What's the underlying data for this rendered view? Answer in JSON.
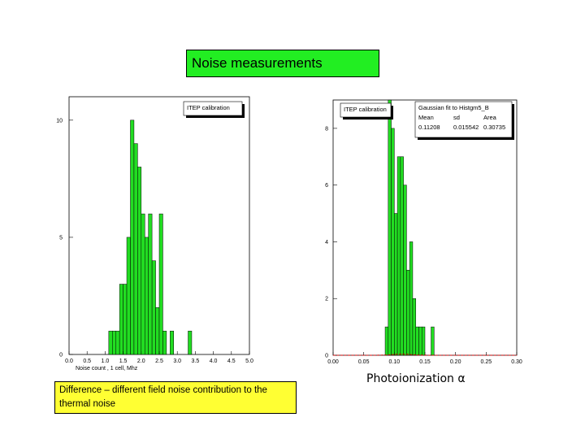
{
  "slide": {
    "title": "Noise measurements",
    "note": "Difference – different field noise contribution to the thermal noise",
    "photo_label": "Photoionization α"
  },
  "colors": {
    "bar_fill": "#22dd22",
    "bar_stroke": "#000000",
    "fit_line": "#cc0000",
    "title_bg": "#22ee22",
    "note_bg": "#ffff33"
  },
  "chart_data": [
    {
      "type": "bar",
      "legend": [
        "ITEP calibration"
      ],
      "xlabel": "Noise count , 1 cell, Mhz",
      "ylabel": "",
      "xlim": [
        0.0,
        5.0
      ],
      "ylim": [
        0,
        11
      ],
      "x_ticks": [
        "0.0",
        "0.5",
        "1.0",
        "1.5",
        "2.0",
        "2.5",
        "3.0",
        "3.5",
        "4.0",
        "4.5",
        "5.0"
      ],
      "y_ticks": [
        "0",
        "5",
        "10"
      ],
      "bin_width": 0.1,
      "bins_x": [
        1.1,
        1.2,
        1.3,
        1.4,
        1.5,
        1.6,
        1.7,
        1.8,
        1.9,
        2.0,
        2.1,
        2.2,
        2.3,
        2.4,
        2.5,
        2.6,
        2.7,
        2.8,
        2.9,
        3.0,
        3.1,
        3.2,
        3.3,
        3.4
      ],
      "values": [
        1,
        1,
        1,
        3,
        3,
        5,
        10,
        9,
        8,
        6,
        5,
        6,
        4,
        2,
        6,
        1,
        0,
        1,
        0,
        0,
        0,
        0,
        1,
        0
      ],
      "grid": false
    },
    {
      "type": "bar",
      "legend": [
        "ITEP calibration"
      ],
      "stats_box": {
        "title": "Gaussian fit to Histgm5_B",
        "headers": [
          "Mean",
          "sd",
          "Area"
        ],
        "values": [
          "0.11208",
          "0.015542",
          "0.30735"
        ]
      },
      "xlabel": "",
      "ylabel": "",
      "xlim": [
        0.0,
        0.3
      ],
      "ylim": [
        0,
        9
      ],
      "x_ticks": [
        "0.00",
        "0.05",
        "0.10",
        "0.15",
        "0.20",
        "0.25",
        "0.30"
      ],
      "x_tick_values": [
        0.0,
        0.05,
        0.1,
        0.15,
        0.2,
        0.25,
        0.3
      ],
      "y_ticks": [
        "0",
        "2",
        "4",
        "6",
        "8"
      ],
      "bin_width": 0.005,
      "bins_x": [
        0.085,
        0.09,
        0.095,
        0.1,
        0.105,
        0.11,
        0.115,
        0.12,
        0.125,
        0.13,
        0.135,
        0.14,
        0.145,
        0.15,
        0.155,
        0.16
      ],
      "values": [
        1,
        9,
        8,
        5,
        7,
        7,
        6,
        3,
        4,
        2,
        1,
        1,
        1,
        0,
        0,
        1
      ],
      "fit": {
        "type": "gaussian",
        "mean": 0.11208,
        "sd": 0.015542,
        "area": 0.30735
      },
      "grid": false
    }
  ]
}
